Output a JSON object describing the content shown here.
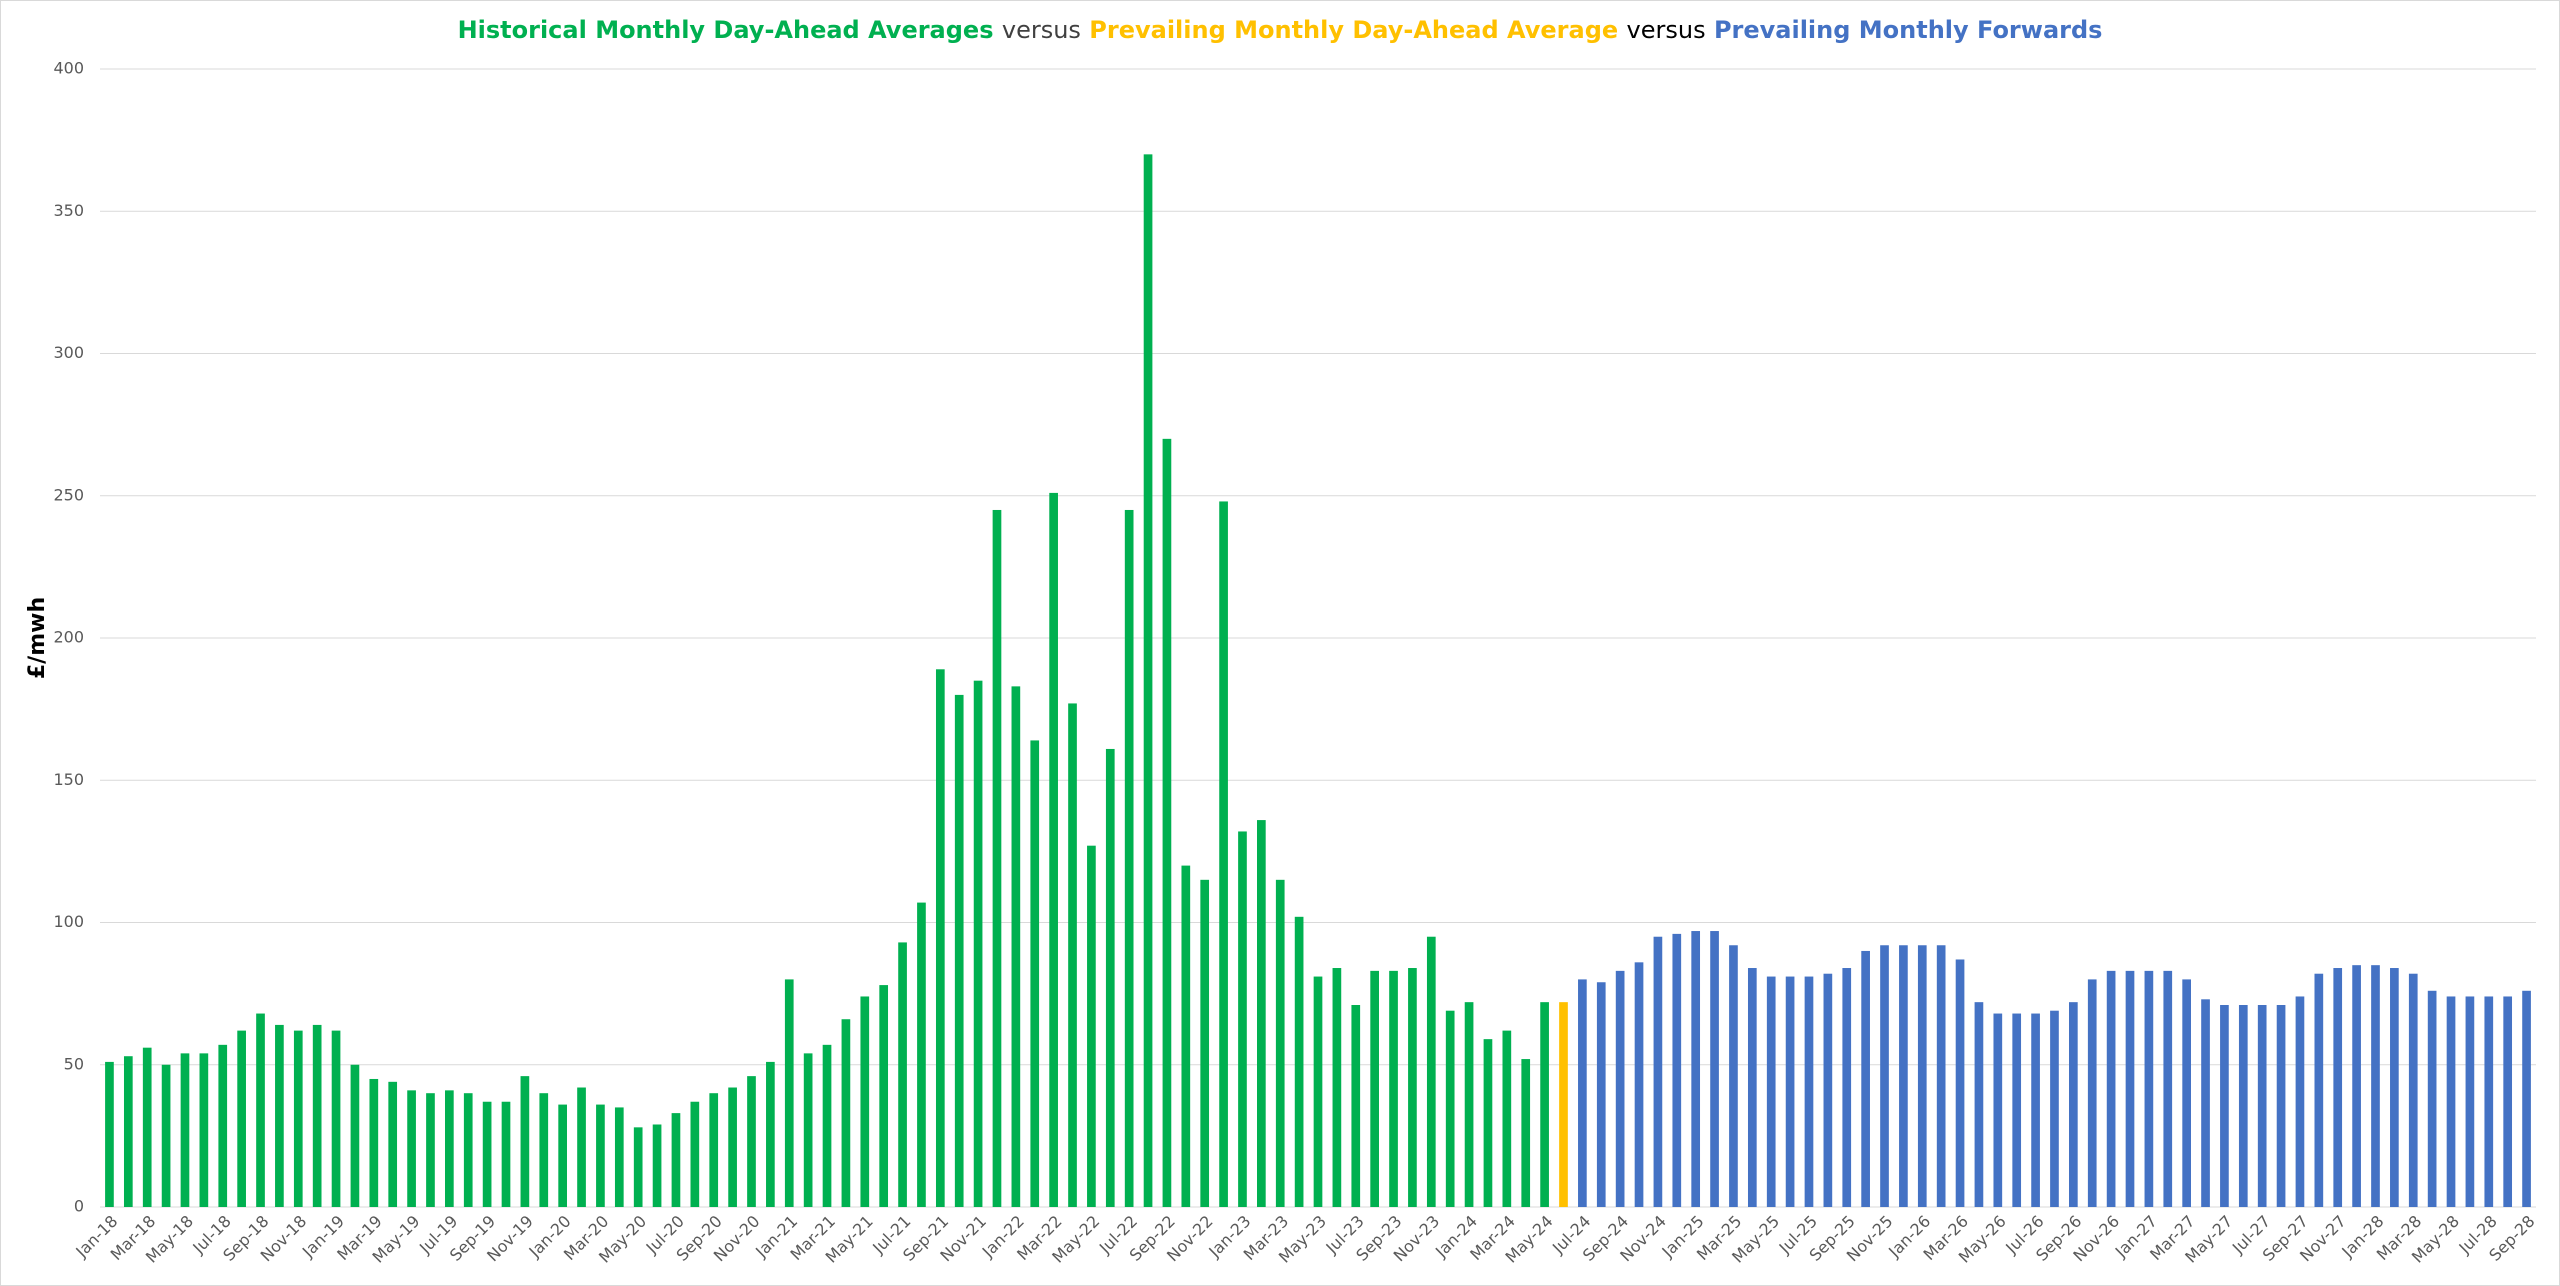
{
  "chart_data": {
    "type": "bar",
    "title_joiner": "versus",
    "y_label": "£/mwh",
    "categories": [
      "Jan-18",
      null,
      "Mar-18",
      null,
      "May-18",
      null,
      "Jul-18",
      null,
      "Sep-18",
      null,
      "Nov-18",
      null,
      "Jan-19",
      null,
      "Mar-19",
      null,
      "May-19",
      null,
      "Jul-19",
      null,
      "Sep-19",
      null,
      "Nov-19",
      null,
      "Jan-20",
      null,
      "Mar-20",
      null,
      "May-20",
      null,
      "Jul-20",
      null,
      "Sep-20",
      null,
      "Nov-20",
      null,
      "Jan-21",
      null,
      "Mar-21",
      null,
      "May-21",
      null,
      "Jul-21",
      null,
      "Sep-21",
      null,
      "Nov-21",
      null,
      "Jan-22",
      null,
      "Mar-22",
      null,
      "May-22",
      null,
      "Jul-22",
      null,
      "Sep-22",
      null,
      "Nov-22",
      null,
      "Jan-23",
      null,
      "Mar-23",
      null,
      "May-23",
      null,
      "Jul-23",
      null,
      "Sep-23",
      null,
      "Nov-23",
      null,
      "Jan-24",
      null,
      "Mar-24",
      null,
      "May-24",
      null,
      "Jul-24",
      null,
      "Sep-24",
      null,
      "Nov-24",
      null,
      "Jan-25",
      null,
      "Mar-25",
      null,
      "May-25",
      null,
      "Jul-25",
      null,
      "Sep-25",
      null,
      "Nov-25",
      null,
      "Jan-26",
      null,
      "Mar-26",
      null,
      "May-26",
      null,
      "Jul-26",
      null,
      "Sep-26",
      null,
      "Nov-26",
      null,
      "Jan-27",
      null,
      "Mar-27",
      null,
      "May-27",
      null,
      "Jul-27",
      null,
      "Sep-27",
      null,
      "Nov-27",
      null,
      "Jan-28",
      null,
      "Mar-28",
      null,
      "May-28",
      null,
      "Jul-28",
      null,
      "Sep-28"
    ],
    "series": [
      {
        "name": "Historical Monthly Day-Ahead Averages",
        "color": "#00b050",
        "values": [
          51,
          53,
          56,
          50,
          54,
          54,
          57,
          62,
          68,
          64,
          62,
          64,
          62,
          50,
          45,
          44,
          41,
          40,
          41,
          40,
          37,
          37,
          46,
          40,
          36,
          42,
          36,
          35,
          28,
          29,
          33,
          37,
          40,
          42,
          46,
          51,
          80,
          54,
          57,
          66,
          74,
          78,
          93,
          107,
          189,
          180,
          185,
          245,
          183,
          164,
          251,
          177,
          127,
          161,
          245,
          370,
          270,
          120,
          115,
          248,
          132,
          136,
          115,
          102,
          81,
          84,
          71,
          83,
          83,
          84,
          95,
          69,
          72,
          59,
          62,
          52,
          72,
          null,
          null,
          null,
          null,
          null,
          null,
          null,
          null,
          null,
          null,
          null,
          null,
          null,
          null,
          null,
          null,
          null,
          null,
          null,
          null,
          null,
          null,
          null,
          null,
          null,
          null,
          null,
          null,
          null,
          null,
          null,
          null,
          null,
          null,
          null,
          null,
          null,
          null,
          null,
          null,
          null,
          null,
          null,
          null,
          null,
          null,
          null,
          null,
          null,
          null,
          null,
          null
        ]
      },
      {
        "name": "Prevailing Monthly Day-Ahead Average",
        "color": "#ffc000",
        "values": [
          null,
          null,
          null,
          null,
          null,
          null,
          null,
          null,
          null,
          null,
          null,
          null,
          null,
          null,
          null,
          null,
          null,
          null,
          null,
          null,
          null,
          null,
          null,
          null,
          null,
          null,
          null,
          null,
          null,
          null,
          null,
          null,
          null,
          null,
          null,
          null,
          null,
          null,
          null,
          null,
          null,
          null,
          null,
          null,
          null,
          null,
          null,
          null,
          null,
          null,
          null,
          null,
          null,
          null,
          null,
          null,
          null,
          null,
          null,
          null,
          null,
          null,
          null,
          null,
          null,
          null,
          null,
          null,
          null,
          null,
          null,
          null,
          null,
          null,
          null,
          null,
          null,
          72,
          null,
          null,
          null,
          null,
          null,
          null,
          null,
          null,
          null,
          null,
          null,
          null,
          null,
          null,
          null,
          null,
          null,
          null,
          null,
          null,
          null,
          null,
          null,
          null,
          null,
          null,
          null,
          null,
          null,
          null,
          null,
          null,
          null,
          null,
          null,
          null,
          null,
          null,
          null,
          null,
          null,
          null,
          null,
          null,
          null,
          null,
          null,
          null,
          null,
          null,
          null
        ]
      },
      {
        "name": "Prevailing Monthly Forwards",
        "color": "#4472c4",
        "values": [
          null,
          null,
          null,
          null,
          null,
          null,
          null,
          null,
          null,
          null,
          null,
          null,
          null,
          null,
          null,
          null,
          null,
          null,
          null,
          null,
          null,
          null,
          null,
          null,
          null,
          null,
          null,
          null,
          null,
          null,
          null,
          null,
          null,
          null,
          null,
          null,
          null,
          null,
          null,
          null,
          null,
          null,
          null,
          null,
          null,
          null,
          null,
          null,
          null,
          null,
          null,
          null,
          null,
          null,
          null,
          null,
          null,
          null,
          null,
          null,
          null,
          null,
          null,
          null,
          null,
          null,
          null,
          null,
          null,
          null,
          null,
          null,
          null,
          null,
          null,
          null,
          null,
          null,
          80,
          79,
          83,
          86,
          95,
          96,
          97,
          97,
          92,
          84,
          81,
          81,
          81,
          82,
          84,
          90,
          92,
          92,
          92,
          92,
          87,
          72,
          68,
          68,
          68,
          69,
          72,
          80,
          83,
          83,
          83,
          83,
          80,
          73,
          71,
          71,
          71,
          71,
          74,
          82,
          84,
          85,
          85,
          84,
          82,
          76,
          74,
          74,
          74,
          74,
          76
        ]
      }
    ],
    "ylim": [
      0,
      400
    ],
    "yticks": [
      0,
      50,
      100,
      150,
      200,
      250,
      300,
      350,
      400
    ],
    "grid": true
  }
}
